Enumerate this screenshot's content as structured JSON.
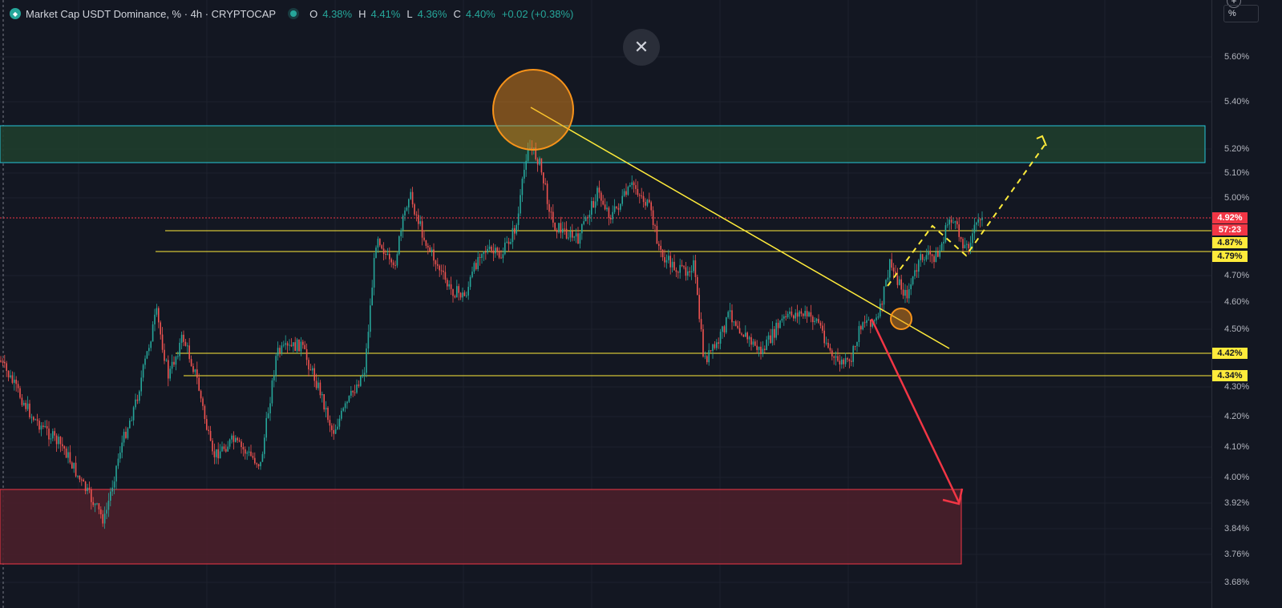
{
  "legend": {
    "title": "Market Cap USDT Dominance, % · 4h · CRYPTOCAP",
    "o_label": "O",
    "o_value": "4.38%",
    "h_label": "H",
    "h_value": "4.41%",
    "l_label": "L",
    "l_value": "4.36%",
    "c_label": "C",
    "c_value": "4.40%",
    "change": "+0.02 (+0.38%)"
  },
  "controls": {
    "close_symbol": "✕",
    "percent_button": "%",
    "plus_symbol": "+"
  },
  "price_scale": {
    "ticks": [
      "5.60%",
      "5.40%",
      "5.20%",
      "5.10%",
      "5.00%",
      "4.70%",
      "4.60%",
      "4.50%",
      "4.30%",
      "4.20%",
      "4.10%",
      "4.00%",
      "3.92%",
      "3.84%",
      "3.76%",
      "3.68%"
    ],
    "labels": [
      {
        "text": "4.92%",
        "bg": "#f23645",
        "fg": "#ffffff"
      },
      {
        "text": "57:23",
        "bg": "#f23645",
        "fg": "#ffffff"
      },
      {
        "text": "4.87%",
        "bg": "#ffeb3b",
        "fg": "#131722"
      },
      {
        "text": "4.79%",
        "bg": "#ffeb3b",
        "fg": "#131722"
      },
      {
        "text": "4.42%",
        "bg": "#ffeb3b",
        "fg": "#131722"
      },
      {
        "text": "4.34%",
        "bg": "#ffeb3b",
        "fg": "#131722"
      }
    ]
  },
  "colors": {
    "background": "#131722",
    "up": "#26a69a",
    "down": "#ef5350",
    "level_line": "#ffeb3b",
    "resistance_zone": "#1f3d2c",
    "resistance_border": "#26c6da",
    "support_zone": "#4a1f2a",
    "support_border": "#f23645",
    "highlight_circle": "#f7931a",
    "arrow": "#f23645"
  }
}
